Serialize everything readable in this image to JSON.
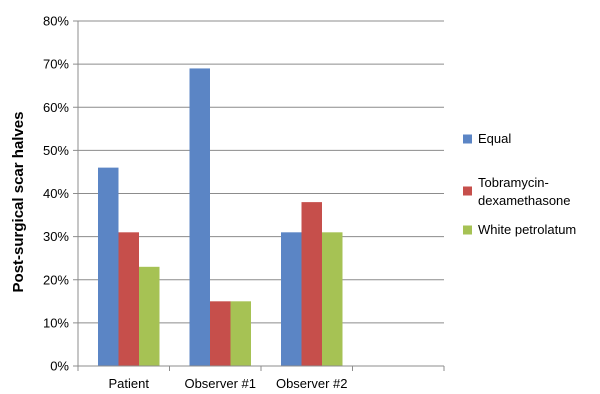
{
  "chart_data": {
    "type": "bar",
    "title": "",
    "xlabel": "",
    "ylabel": "Post-surgical scar halves",
    "ylim": [
      0,
      80
    ],
    "yticks": [
      0,
      10,
      20,
      30,
      40,
      50,
      60,
      70,
      80
    ],
    "y_tick_format": "percent",
    "categories": [
      "Patient",
      "Observer #1",
      "Observer #2"
    ],
    "series": [
      {
        "name": "Equal",
        "color": "#5B85C5",
        "values": [
          46,
          69,
          31
        ]
      },
      {
        "name": "Tobramycin-dexamethasone",
        "legend_lines": [
          "Tobramycin-",
          "dexamethasone"
        ],
        "color": "#C64F4B",
        "values": [
          31,
          15,
          38
        ]
      },
      {
        "name": "White petrolatum",
        "color": "#A6C254",
        "values": [
          23,
          15,
          31
        ]
      }
    ],
    "grid": true,
    "legend": "right"
  }
}
